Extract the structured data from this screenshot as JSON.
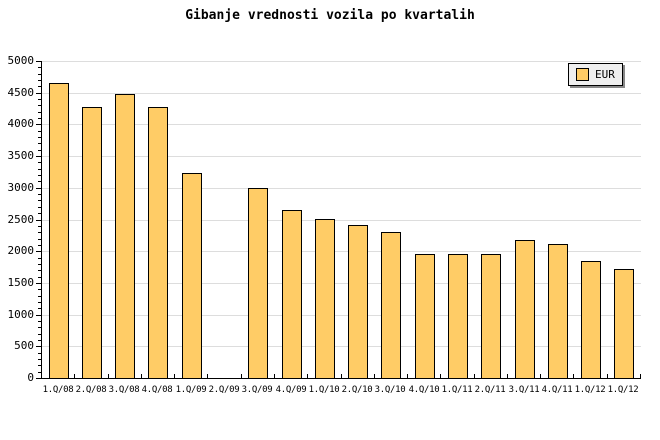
{
  "chart_data": {
    "type": "bar",
    "title": "Gibanje vrednosti vozila po kvartalih",
    "xlabel": "",
    "ylabel": "",
    "categories": [
      "1.Q/08",
      "2.Q/08",
      "3.Q/08",
      "4.Q/08",
      "1.Q/09",
      "2.Q/09",
      "3.Q/09",
      "4.Q/09",
      "1.Q/10",
      "2.Q/10",
      "3.Q/10",
      "4.Q/10",
      "1.Q/11",
      "2.Q/11",
      "3.Q/11",
      "4.Q/11",
      "1.Q/12",
      "1.Q/12"
    ],
    "series": [
      {
        "name": "EUR",
        "values": [
          4660,
          4280,
          4480,
          4280,
          3230,
          null,
          2990,
          2650,
          2500,
          2420,
          2300,
          1950,
          1960,
          1960,
          2170,
          2110,
          1840,
          1720
        ]
      }
    ],
    "ylim": [
      0,
      5000
    ],
    "ytick_step": 500,
    "y_minor_step": 100,
    "grid": true,
    "legend_position": "top-right",
    "colors": {
      "bar_fill": "#FFCC66",
      "bar_border": "#000000",
      "gridline": "#DDDDDD",
      "axis": "#000000",
      "legend_bg": "#EFEFEF",
      "legend_shadow": "#888888",
      "text": "#000000",
      "background": "#FFFFFF"
    }
  },
  "legend": {
    "label": "EUR"
  }
}
